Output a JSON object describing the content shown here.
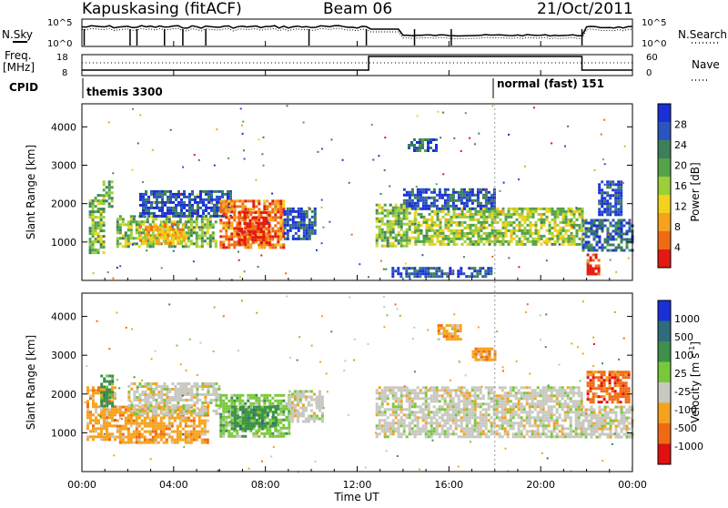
{
  "header": {
    "station": "Kapuskasing (fitACF)",
    "beam": "Beam 06",
    "date": "21/Oct/2011"
  },
  "top_panels": {
    "nsky_label": "N.Sky",
    "nsearch_label": "N.Search",
    "freq_label_1": "Freq.",
    "freq_label_2": "[MHz]",
    "nave_label": "Nave",
    "cpid_label": "CPID",
    "noise_ticks": [
      "10^5",
      "10^0"
    ],
    "noise_right_ticks": [
      "10^5",
      "10^0"
    ],
    "freq_ticks": [
      "18",
      "8"
    ],
    "nave_ticks": [
      "60",
      "0"
    ],
    "cpid_segments": [
      {
        "label": "themis 3300",
        "start_hour": 0,
        "end_hour": 18
      },
      {
        "label": "normal (fast) 151",
        "start_hour": 18,
        "end_hour": 24
      }
    ]
  },
  "colors": {
    "power": [
      "#1a2fd6",
      "#2a55c0",
      "#3d7f5a",
      "#54a24a",
      "#9ccf38",
      "#f2d21a",
      "#f6a21c",
      "#f06a14",
      "#e21a10"
    ],
    "velocity": [
      "#1a2fd6",
      "#2e6c7a",
      "#3d8f4a",
      "#78c83a",
      "#c8c8c0",
      "#f6a21c",
      "#f06a14",
      "#e01010"
    ]
  },
  "chart_data": [
    {
      "type": "heatmap",
      "name": "power",
      "xlabel": "Time UT",
      "ylabel": "Slant Range [km]",
      "xlim": [
        0,
        24
      ],
      "ylim": [
        0,
        4600
      ],
      "x_ticks": [
        "00:00",
        "04:00",
        "08:00",
        "12:00",
        "16:00",
        "20:00",
        "00:00"
      ],
      "y_ticks": [
        "1000",
        "2000",
        "3000",
        "4000"
      ],
      "colorbar": {
        "label": "Power [dB]",
        "ticks": [
          "28",
          "24",
          "20",
          "16",
          "12",
          "8",
          "4"
        ],
        "range": [
          0,
          30
        ]
      },
      "regions": [
        {
          "t0": 0.3,
          "t1": 1.0,
          "r0": 750,
          "r1": 2250,
          "level": 0.45
        },
        {
          "t0": 0.9,
          "t1": 1.3,
          "r0": 1900,
          "r1": 2600,
          "level": 0.4
        },
        {
          "t0": 1.5,
          "t1": 5.8,
          "r0": 850,
          "r1": 1700,
          "level": 0.45
        },
        {
          "t0": 2.5,
          "t1": 4.5,
          "r0": 1000,
          "r1": 1500,
          "level": 0.7
        },
        {
          "t0": 2.5,
          "t1": 6.5,
          "r0": 1700,
          "r1": 2350,
          "level": 0.15
        },
        {
          "t0": 6.0,
          "t1": 8.8,
          "r0": 850,
          "r1": 2100,
          "level": 0.8
        },
        {
          "t0": 6.8,
          "t1": 8.2,
          "r0": 1000,
          "r1": 1800,
          "level": 0.95
        },
        {
          "t0": 8.8,
          "t1": 10.2,
          "r0": 1100,
          "r1": 1900,
          "level": 0.15
        },
        {
          "t0": 12.8,
          "t1": 14.5,
          "r0": 900,
          "r1": 2000,
          "level": 0.45
        },
        {
          "t0": 14.5,
          "t1": 21.8,
          "r0": 950,
          "r1": 1900,
          "level": 0.5
        },
        {
          "t0": 14.0,
          "t1": 18.0,
          "r0": 1900,
          "r1": 2400,
          "level": 0.15
        },
        {
          "t0": 14.2,
          "t1": 15.5,
          "r0": 3400,
          "r1": 3700,
          "level": 0.2
        },
        {
          "t0": 13.5,
          "t1": 17.8,
          "r0": 100,
          "r1": 350,
          "level": 0.15
        },
        {
          "t0": 21.8,
          "t1": 24.0,
          "r0": 800,
          "r1": 1600,
          "level": 0.2
        },
        {
          "t0": 22.5,
          "t1": 23.5,
          "r0": 1700,
          "r1": 2600,
          "level": 0.1
        },
        {
          "t0": 22.0,
          "t1": 22.5,
          "r0": 150,
          "r1": 700,
          "level": 0.95
        }
      ]
    },
    {
      "type": "heatmap",
      "name": "velocity",
      "xlabel": "Time UT",
      "ylabel": "Slant Range [km]",
      "xlim": [
        0,
        24
      ],
      "ylim": [
        0,
        4600
      ],
      "x_ticks": [
        "00:00",
        "04:00",
        "08:00",
        "12:00",
        "16:00",
        "20:00",
        "00:00"
      ],
      "y_ticks": [
        "1000",
        "2000",
        "3000",
        "4000"
      ],
      "colorbar": {
        "label": "Velocity [m s^-1]",
        "ticks": [
          "1000",
          "500",
          "100",
          "25",
          "-25",
          "-100",
          "-500",
          "-1000"
        ]
      },
      "regions": [
        {
          "t0": 0.2,
          "t1": 1.5,
          "r0": 800,
          "r1": 2200,
          "vclass": 5
        },
        {
          "t0": 0.8,
          "t1": 1.3,
          "r0": 1700,
          "r1": 2500,
          "vclass": 2
        },
        {
          "t0": 1.5,
          "t1": 5.5,
          "r0": 750,
          "r1": 1700,
          "vclass": 5
        },
        {
          "t0": 2.0,
          "t1": 6.0,
          "r0": 1500,
          "r1": 2300,
          "vclass": 4
        },
        {
          "t0": 6.0,
          "t1": 9.0,
          "r0": 900,
          "r1": 2000,
          "vclass": 3
        },
        {
          "t0": 6.5,
          "t1": 8.5,
          "r0": 1100,
          "r1": 1700,
          "vclass": 2
        },
        {
          "t0": 9.0,
          "t1": 10.5,
          "r0": 1300,
          "r1": 2100,
          "vclass": 4
        },
        {
          "t0": 12.8,
          "t1": 21.8,
          "r0": 900,
          "r1": 2200,
          "vclass": 4
        },
        {
          "t0": 15.5,
          "t1": 16.5,
          "r0": 3400,
          "r1": 3800,
          "vclass": 5
        },
        {
          "t0": 17.0,
          "t1": 18.0,
          "r0": 2900,
          "r1": 3200,
          "vclass": 5
        },
        {
          "t0": 21.8,
          "t1": 24.0,
          "r0": 900,
          "r1": 1700,
          "vclass": 4
        },
        {
          "t0": 22.0,
          "t1": 23.8,
          "r0": 1800,
          "r1": 2600,
          "vclass": 6
        }
      ]
    }
  ]
}
